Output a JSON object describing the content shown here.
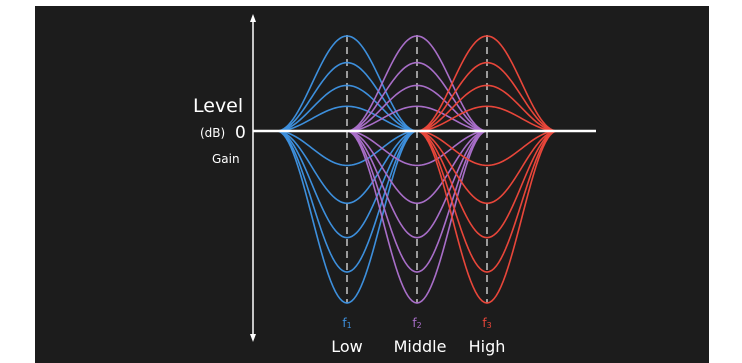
{
  "title": "",
  "y_axis": {
    "label": "Level",
    "unit": "(dB)",
    "zero_label": "0",
    "sub_label": "Gain"
  },
  "bands": [
    {
      "freq_letter": "f",
      "freq_sub": "1",
      "name": "Low",
      "color": "#3d8fdc"
    },
    {
      "freq_letter": "f",
      "freq_sub": "2",
      "name": "Middle",
      "color": "#a86ec8"
    },
    {
      "freq_letter": "f",
      "freq_sub": "3",
      "name": "High",
      "color": "#e8463a"
    }
  ],
  "gain_levels": [
    1.0,
    0.72,
    0.48,
    0.26,
    -0.2,
    -0.42,
    -0.62,
    -0.82,
    -1.0
  ],
  "colors": {
    "background": "#1c1c1c",
    "axis": "#ffffff",
    "guide": "#bbbbbb"
  }
}
